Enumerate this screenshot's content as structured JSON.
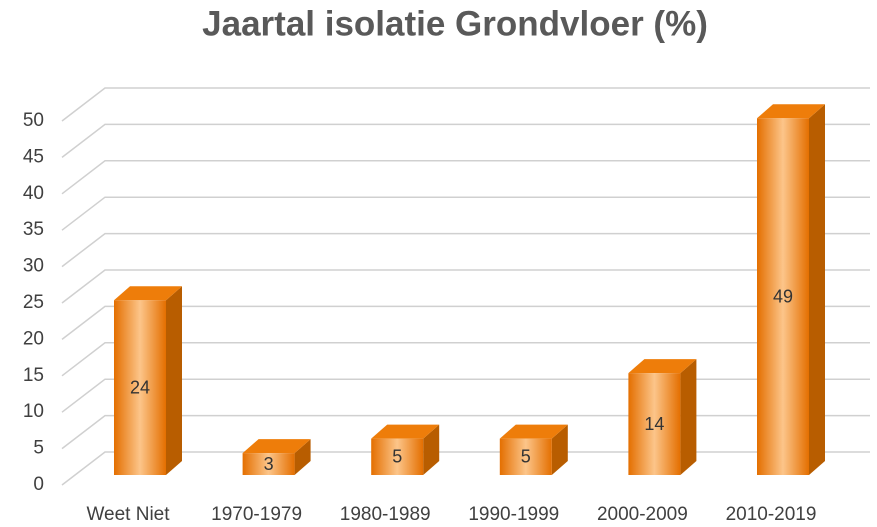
{
  "chart_data": {
    "type": "bar3d",
    "title": "Jaartal isolatie Grondvloer (%)",
    "categories": [
      "Weet Niet",
      "1970-1979",
      "1980-1989",
      "1990-1999",
      "2000-2009",
      "2010-2019"
    ],
    "values": [
      24,
      3,
      5,
      5,
      14,
      49
    ],
    "color": "#ee7d0a",
    "ylim": [
      0,
      50
    ],
    "yticks": [
      0,
      5,
      10,
      15,
      20,
      25,
      30,
      35,
      40,
      45,
      50
    ],
    "grid": true
  }
}
